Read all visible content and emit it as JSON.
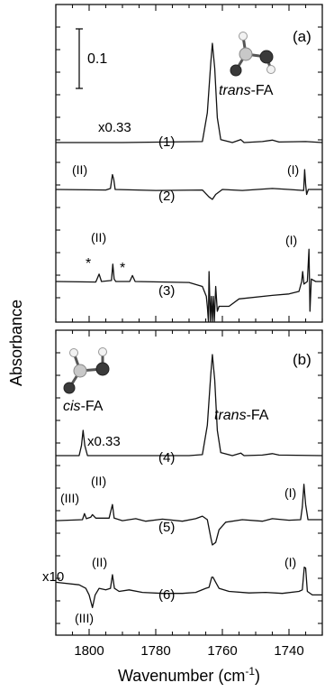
{
  "chart_data": [
    {
      "type": "line",
      "panel_label": "(a)",
      "xlim": [
        1810,
        1730
      ],
      "x_direction": "reversed",
      "scale_bar": {
        "label": "0.1",
        "value": 0.1
      },
      "molecule_label": {
        "prefix": "trans",
        "suffix": "-FA"
      },
      "series": [
        {
          "name": "(1)",
          "multiplier_label": "x0.33",
          "baseline": 0.0,
          "points": [
            [
              1810,
              0.0
            ],
            [
              1790,
              0.0
            ],
            [
              1766,
              0.002
            ],
            [
              1764.5,
              0.06
            ],
            [
              1763.5,
              0.16
            ],
            [
              1763,
              0.2
            ],
            [
              1762.3,
              0.15
            ],
            [
              1761.5,
              0.05
            ],
            [
              1760.5,
              0.006
            ],
            [
              1757,
              0.0
            ],
            [
              1754.5,
              0.006
            ],
            [
              1753.5,
              0.0
            ],
            [
              1748,
              0.002
            ],
            [
              1745,
              0.005
            ],
            [
              1743,
              0.001
            ],
            [
              1735,
              0.002
            ],
            [
              1730,
              0.0
            ]
          ]
        },
        {
          "name": "(2)",
          "baseline": -0.12,
          "points": [
            [
              1810,
              -0.12
            ],
            [
              1795,
              -0.121
            ],
            [
              1793.6,
              -0.118
            ],
            [
              1793,
              -0.09
            ],
            [
              1792.6,
              -0.1
            ],
            [
              1792.2,
              -0.12
            ],
            [
              1780,
              -0.122
            ],
            [
              1766,
              -0.121
            ],
            [
              1764,
              -0.135
            ],
            [
              1763,
              -0.14
            ],
            [
              1762,
              -0.13
            ],
            [
              1760,
              -0.12
            ],
            [
              1754,
              -0.122
            ],
            [
              1745,
              -0.118
            ],
            [
              1740,
              -0.12
            ],
            [
              1735.6,
              -0.122
            ],
            [
              1735.3,
              -0.08
            ],
            [
              1735,
              -0.11
            ],
            [
              1734.7,
              -0.13
            ],
            [
              1734.2,
              -0.12
            ],
            [
              1730,
              -0.12
            ]
          ]
        },
        {
          "name": "(3)",
          "baseline": -0.27,
          "points": [
            [
              1810,
              -0.27
            ],
            [
              1798,
              -0.271
            ],
            [
              1797,
              -0.255
            ],
            [
              1796.3,
              -0.27
            ],
            [
              1793.3,
              -0.268
            ],
            [
              1792.9,
              -0.235
            ],
            [
              1792.5,
              -0.265
            ],
            [
              1792,
              -0.27
            ],
            [
              1787.8,
              -0.27
            ],
            [
              1787,
              -0.258
            ],
            [
              1786.2,
              -0.27
            ],
            [
              1770,
              -0.272
            ],
            [
              1766,
              -0.28
            ],
            [
              1764.8,
              -0.3
            ],
            [
              1764.5,
              -0.32
            ],
            [
              1764.2,
              -0.45
            ],
            [
              1764,
              -0.25
            ],
            [
              1763.6,
              -0.45
            ],
            [
              1763.3,
              -0.3
            ],
            [
              1763,
              -0.45
            ],
            [
              1762.7,
              -0.3
            ],
            [
              1762.4,
              -0.45
            ],
            [
              1762,
              -0.28
            ],
            [
              1761.5,
              -0.33
            ],
            [
              1761,
              -0.32
            ],
            [
              1758,
              -0.32
            ],
            [
              1755,
              -0.305
            ],
            [
              1745,
              -0.298
            ],
            [
              1740,
              -0.295
            ],
            [
              1737,
              -0.29
            ],
            [
              1736.2,
              -0.27
            ],
            [
              1735.9,
              -0.25
            ],
            [
              1735.5,
              -0.275
            ],
            [
              1734.5,
              -0.27
            ],
            [
              1734,
              -0.205
            ],
            [
              1733.7,
              -0.33
            ],
            [
              1733.3,
              -0.265
            ],
            [
              1732,
              -0.27
            ],
            [
              1730,
              -0.27
            ]
          ]
        }
      ],
      "annotations": [
        {
          "text": "(II)",
          "series": "(2)"
        },
        {
          "text": "(I)",
          "series": "(2)"
        },
        {
          "text": "(II)",
          "series": "(3)"
        },
        {
          "text": "(I)",
          "series": "(3)"
        },
        {
          "text": "*",
          "series": "(3)",
          "x": 1797
        },
        {
          "text": "*",
          "series": "(3)",
          "x": 1787
        }
      ]
    },
    {
      "type": "line",
      "panel_label": "(b)",
      "xlim": [
        1810,
        1730
      ],
      "x_direction": "reversed",
      "molecule_label": {
        "prefix": "cis",
        "suffix": "-FA"
      },
      "trans_label": {
        "prefix": "trans",
        "suffix": "-FA"
      },
      "series": [
        {
          "name": "(4)",
          "multiplier_label": "x0.33",
          "baseline": 0.0,
          "points": [
            [
              1810,
              0.0
            ],
            [
              1803,
              0.0
            ],
            [
              1802.3,
              0.02
            ],
            [
              1801.8,
              0.05
            ],
            [
              1801.3,
              0.02
            ],
            [
              1800.5,
              0.0
            ],
            [
              1770,
              0.0
            ],
            [
              1766,
              0.002
            ],
            [
              1764.5,
              0.06
            ],
            [
              1763.5,
              0.16
            ],
            [
              1763,
              0.2
            ],
            [
              1762.3,
              0.15
            ],
            [
              1761.5,
              0.05
            ],
            [
              1760.5,
              0.006
            ],
            [
              1757,
              0.0
            ],
            [
              1754.5,
              0.005
            ],
            [
              1753.5,
              0.0
            ],
            [
              1748,
              0.001
            ],
            [
              1745,
              0.004
            ],
            [
              1743,
              0.001
            ],
            [
              1730,
              0.0
            ]
          ]
        },
        {
          "name": "(5)",
          "baseline": -0.13,
          "points": [
            [
              1810,
              -0.132
            ],
            [
              1802,
              -0.13
            ],
            [
              1801.4,
              -0.118
            ],
            [
              1800.8,
              -0.128
            ],
            [
              1799.5,
              -0.125
            ],
            [
              1799,
              -0.12
            ],
            [
              1798,
              -0.127
            ],
            [
              1794,
              -0.127
            ],
            [
              1793,
              -0.1
            ],
            [
              1792.5,
              -0.127
            ],
            [
              1790,
              -0.132
            ],
            [
              1786,
              -0.128
            ],
            [
              1783,
              -0.133
            ],
            [
              1778,
              -0.129
            ],
            [
              1772,
              -0.133
            ],
            [
              1768,
              -0.128
            ],
            [
              1766,
              -0.123
            ],
            [
              1764.5,
              -0.13
            ],
            [
              1763.5,
              -0.165
            ],
            [
              1763,
              -0.18
            ],
            [
              1762,
              -0.175
            ],
            [
              1761,
              -0.15
            ],
            [
              1759,
              -0.135
            ],
            [
              1754,
              -0.13
            ],
            [
              1748,
              -0.133
            ],
            [
              1745,
              -0.128
            ],
            [
              1740,
              -0.131
            ],
            [
              1736.5,
              -0.13
            ],
            [
              1736,
              -0.105
            ],
            [
              1735.5,
              -0.06
            ],
            [
              1735,
              -0.1
            ],
            [
              1734.3,
              -0.13
            ],
            [
              1730,
              -0.13
            ]
          ]
        },
        {
          "name": "(6)",
          "multiplier_label": "x10",
          "baseline": -0.26,
          "points": [
            [
              1810,
              -0.25
            ],
            [
              1803,
              -0.255
            ],
            [
              1801,
              -0.262
            ],
            [
              1800,
              -0.275
            ],
            [
              1799,
              -0.3
            ],
            [
              1798.2,
              -0.275
            ],
            [
              1797,
              -0.262
            ],
            [
              1795,
              -0.265
            ],
            [
              1793.6,
              -0.262
            ],
            [
              1793,
              -0.235
            ],
            [
              1792.4,
              -0.262
            ],
            [
              1791,
              -0.268
            ],
            [
              1788,
              -0.265
            ],
            [
              1784,
              -0.27
            ],
            [
              1778,
              -0.272
            ],
            [
              1772,
              -0.272
            ],
            [
              1768,
              -0.27
            ],
            [
              1765,
              -0.262
            ],
            [
              1764,
              -0.26
            ],
            [
              1763.2,
              -0.24
            ],
            [
              1762.8,
              -0.24
            ],
            [
              1762,
              -0.25
            ],
            [
              1761,
              -0.262
            ],
            [
              1758,
              -0.268
            ],
            [
              1752,
              -0.271
            ],
            [
              1747,
              -0.27
            ],
            [
              1742,
              -0.272
            ],
            [
              1737,
              -0.268
            ],
            [
              1736,
              -0.265
            ],
            [
              1735.4,
              -0.22
            ],
            [
              1735,
              -0.222
            ],
            [
              1734.5,
              -0.268
            ],
            [
              1733,
              -0.275
            ],
            [
              1730,
              -0.275
            ]
          ]
        }
      ],
      "annotations": [
        {
          "text": "(III)",
          "series": "(5)"
        },
        {
          "text": "(II)",
          "series": "(5)"
        },
        {
          "text": "(I)",
          "series": "(5)"
        },
        {
          "text": "(II)",
          "series": "(6)"
        },
        {
          "text": "(I)",
          "series": "(6)"
        },
        {
          "text": "(III)",
          "series": "(6)"
        }
      ]
    }
  ],
  "axes": {
    "xlabel": "Wavenumber (cm",
    "xlabel_sup": "-1",
    "xlabel_end": ")",
    "ylabel": "Absorbance",
    "xticks": [
      "1800",
      "1780",
      "1760",
      "1740"
    ]
  }
}
